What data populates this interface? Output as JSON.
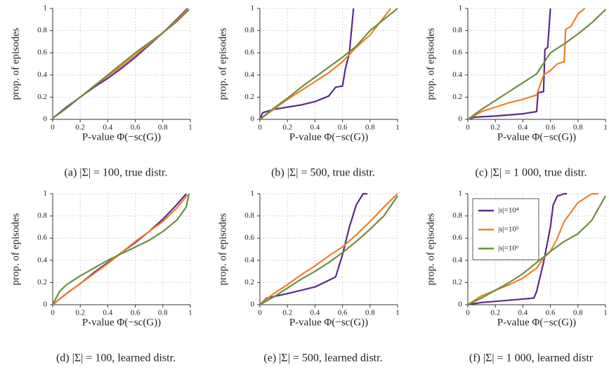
{
  "chart_data": [
    {
      "type": "line",
      "caption": "(a) |Σ| = 100, true distr.",
      "xlabel": "P-value Φ(−sc(G))",
      "ylabel": "prop. of episodes",
      "xlim": [
        0,
        1
      ],
      "ylim": [
        0,
        1
      ],
      "xticks": [
        0,
        0.2,
        0.4,
        0.6,
        0.8,
        1
      ],
      "yticks": [
        0,
        0.2,
        0.4,
        0.6,
        0.8,
        1
      ],
      "grid": true,
      "series": [
        {
          "color": "#5b2a8c",
          "x": [
            0,
            0.1,
            0.2,
            0.3,
            0.4,
            0.5,
            0.6,
            0.7,
            0.8,
            0.9,
            0.98
          ],
          "values": [
            0.01,
            0.11,
            0.2,
            0.29,
            0.37,
            0.46,
            0.56,
            0.67,
            0.78,
            0.9,
            1
          ]
        },
        {
          "color": "#f07f2b",
          "x": [
            0,
            0.1,
            0.2,
            0.3,
            0.4,
            0.5,
            0.6,
            0.7,
            0.8,
            0.9,
            0.98
          ],
          "values": [
            0.01,
            0.1,
            0.2,
            0.3,
            0.39,
            0.48,
            0.58,
            0.68,
            0.78,
            0.89,
            0.99
          ]
        },
        {
          "color": "#6d8f3d",
          "x": [
            0,
            0.1,
            0.2,
            0.3,
            0.4,
            0.5,
            0.6,
            0.7,
            0.8,
            0.9,
            0.99
          ],
          "values": [
            0.01,
            0.1,
            0.2,
            0.3,
            0.4,
            0.5,
            0.6,
            0.69,
            0.78,
            0.88,
            0.99
          ]
        }
      ]
    },
    {
      "type": "line",
      "caption": "(b) |Σ| = 500, true distr.",
      "xlabel": "P-value Φ(−sc(G))",
      "ylabel": "prop. of episodes",
      "xlim": [
        0,
        1
      ],
      "ylim": [
        0,
        1
      ],
      "xticks": [
        0,
        0.2,
        0.4,
        0.6,
        0.8,
        1
      ],
      "yticks": [
        0,
        0.2,
        0.4,
        0.6,
        0.8,
        1
      ],
      "grid": true,
      "series": [
        {
          "color": "#5b2a8c",
          "x": [
            0,
            0.02,
            0.1,
            0.2,
            0.3,
            0.4,
            0.5,
            0.55,
            0.6,
            0.62,
            0.65,
            0.68
          ],
          "values": [
            0,
            0.06,
            0.09,
            0.11,
            0.13,
            0.16,
            0.21,
            0.29,
            0.3,
            0.45,
            0.6,
            1
          ]
        },
        {
          "color": "#f07f2b",
          "x": [
            0,
            0.1,
            0.2,
            0.3,
            0.4,
            0.5,
            0.6,
            0.7,
            0.8,
            0.9,
            0.95
          ],
          "values": [
            0,
            0.09,
            0.18,
            0.26,
            0.34,
            0.42,
            0.52,
            0.65,
            0.76,
            0.92,
            1
          ]
        },
        {
          "color": "#6d8f3d",
          "x": [
            0,
            0.1,
            0.2,
            0.3,
            0.4,
            0.5,
            0.6,
            0.7,
            0.8,
            0.9,
            1
          ],
          "values": [
            0,
            0.1,
            0.19,
            0.29,
            0.38,
            0.47,
            0.56,
            0.66,
            0.8,
            0.9,
            1
          ]
        }
      ]
    },
    {
      "type": "line",
      "caption": "(c) |Σ| = 1 000, true distr.",
      "xlabel": "P-value Φ(−sc(G))",
      "ylabel": "prop. of episodes",
      "xlim": [
        0,
        1
      ],
      "ylim": [
        0,
        1
      ],
      "xticks": [
        0,
        0.2,
        0.4,
        0.6,
        0.8,
        1
      ],
      "yticks": [
        0,
        0.2,
        0.4,
        0.6,
        0.8,
        1
      ],
      "grid": true,
      "series": [
        {
          "color": "#5b2a8c",
          "x": [
            0,
            0.05,
            0.2,
            0.4,
            0.5,
            0.51,
            0.55,
            0.56,
            0.58,
            0.6
          ],
          "values": [
            0,
            0.02,
            0.03,
            0.05,
            0.07,
            0.24,
            0.25,
            0.63,
            0.65,
            1
          ]
        },
        {
          "color": "#f07f2b",
          "x": [
            0,
            0.1,
            0.2,
            0.3,
            0.4,
            0.5,
            0.55,
            0.6,
            0.65,
            0.7,
            0.71,
            0.75,
            0.8,
            0.85
          ],
          "values": [
            0,
            0.07,
            0.11,
            0.15,
            0.18,
            0.22,
            0.4,
            0.44,
            0.5,
            0.52,
            0.81,
            0.84,
            0.95,
            1
          ]
        },
        {
          "color": "#6d8f3d",
          "x": [
            0,
            0.1,
            0.2,
            0.3,
            0.4,
            0.5,
            0.6,
            0.7,
            0.8,
            0.9,
            1
          ],
          "values": [
            0,
            0.09,
            0.17,
            0.25,
            0.33,
            0.41,
            0.6,
            0.68,
            0.77,
            0.87,
            0.99
          ]
        }
      ]
    },
    {
      "type": "line",
      "caption": "(d) |Σ| = 100, learned distr.",
      "xlabel": "P-value Φ(−sc(G))",
      "ylabel": "prop. of episodes",
      "xlim": [
        0,
        1
      ],
      "ylim": [
        0,
        1
      ],
      "xticks": [
        0,
        0.2,
        0.4,
        0.6,
        0.8,
        1
      ],
      "yticks": [
        0,
        0.2,
        0.4,
        0.6,
        0.8,
        1
      ],
      "grid": true,
      "series": [
        {
          "color": "#5b2a8c",
          "x": [
            0,
            0.1,
            0.2,
            0.3,
            0.4,
            0.5,
            0.6,
            0.7,
            0.8,
            0.9,
            0.97
          ],
          "values": [
            0,
            0.1,
            0.19,
            0.29,
            0.38,
            0.47,
            0.56,
            0.66,
            0.77,
            0.9,
            1
          ]
        },
        {
          "color": "#f07f2b",
          "x": [
            0,
            0.1,
            0.2,
            0.3,
            0.4,
            0.5,
            0.6,
            0.7,
            0.8,
            0.9,
            0.98
          ],
          "values": [
            0,
            0.1,
            0.19,
            0.28,
            0.37,
            0.47,
            0.57,
            0.66,
            0.75,
            0.87,
            0.99
          ]
        },
        {
          "color": "#6d8f3d",
          "x": [
            0,
            0.05,
            0.1,
            0.2,
            0.3,
            0.4,
            0.5,
            0.6,
            0.7,
            0.8,
            0.9,
            0.97,
            0.99
          ],
          "values": [
            0,
            0.12,
            0.18,
            0.26,
            0.33,
            0.4,
            0.46,
            0.52,
            0.58,
            0.66,
            0.76,
            0.88,
            1
          ]
        }
      ]
    },
    {
      "type": "line",
      "caption": "(e) |Σ| = 500, learned distr.",
      "xlabel": "P-value Φ(−sc(G))",
      "ylabel": "prop. of episodes",
      "xlim": [
        0,
        1
      ],
      "ylim": [
        0,
        1
      ],
      "xticks": [
        0,
        0.2,
        0.4,
        0.6,
        0.8,
        1
      ],
      "yticks": [
        0,
        0.2,
        0.4,
        0.6,
        0.8,
        1
      ],
      "grid": true,
      "series": [
        {
          "color": "#5b2a8c",
          "x": [
            0,
            0.05,
            0.2,
            0.3,
            0.4,
            0.5,
            0.55,
            0.6,
            0.65,
            0.7,
            0.75,
            0.78
          ],
          "values": [
            0,
            0.06,
            0.1,
            0.13,
            0.16,
            0.22,
            0.25,
            0.45,
            0.7,
            0.9,
            1,
            1
          ]
        },
        {
          "color": "#f07f2b",
          "x": [
            0,
            0.1,
            0.2,
            0.3,
            0.4,
            0.5,
            0.6,
            0.7,
            0.8,
            0.9,
            1
          ],
          "values": [
            0,
            0.1,
            0.18,
            0.27,
            0.35,
            0.44,
            0.52,
            0.63,
            0.75,
            0.88,
            1
          ]
        },
        {
          "color": "#6d8f3d",
          "x": [
            0,
            0.1,
            0.2,
            0.3,
            0.4,
            0.5,
            0.6,
            0.7,
            0.8,
            0.9,
            1
          ],
          "values": [
            0,
            0.07,
            0.15,
            0.23,
            0.3,
            0.38,
            0.47,
            0.57,
            0.68,
            0.8,
            0.98
          ]
        }
      ]
    },
    {
      "type": "line",
      "caption": "(f) |Σ| = 1 000, learned distr",
      "xlabel": "P-value Φ(−sc(G))",
      "ylabel": "prop. of episodes",
      "xlim": [
        0,
        1
      ],
      "ylim": [
        0,
        1
      ],
      "xticks": [
        0,
        0.2,
        0.4,
        0.6,
        0.8,
        1
      ],
      "yticks": [
        0,
        0.2,
        0.4,
        0.6,
        0.8,
        1
      ],
      "grid": true,
      "legend": "upper left",
      "series": [
        {
          "name": "|s|=10⁴",
          "color": "#5b2a8c",
          "x": [
            0,
            0.1,
            0.3,
            0.48,
            0.5,
            0.55,
            0.6,
            0.62,
            0.65,
            0.7,
            0.72
          ],
          "values": [
            0,
            0.02,
            0.04,
            0.06,
            0.12,
            0.38,
            0.7,
            0.9,
            0.98,
            1,
            1
          ]
        },
        {
          "name": "|s|=10⁵",
          "color": "#f07f2b",
          "x": [
            0,
            0.1,
            0.2,
            0.3,
            0.4,
            0.5,
            0.55,
            0.6,
            0.65,
            0.7,
            0.8,
            0.9,
            0.95
          ],
          "values": [
            0,
            0.08,
            0.13,
            0.18,
            0.24,
            0.33,
            0.42,
            0.48,
            0.6,
            0.75,
            0.92,
            1,
            1
          ]
        },
        {
          "name": "|s|=10⁶",
          "color": "#6d8f3d",
          "x": [
            0,
            0.1,
            0.2,
            0.3,
            0.4,
            0.5,
            0.6,
            0.7,
            0.8,
            0.9,
            1
          ],
          "values": [
            0,
            0.06,
            0.13,
            0.2,
            0.28,
            0.38,
            0.48,
            0.57,
            0.64,
            0.76,
            0.98
          ]
        }
      ]
    }
  ]
}
